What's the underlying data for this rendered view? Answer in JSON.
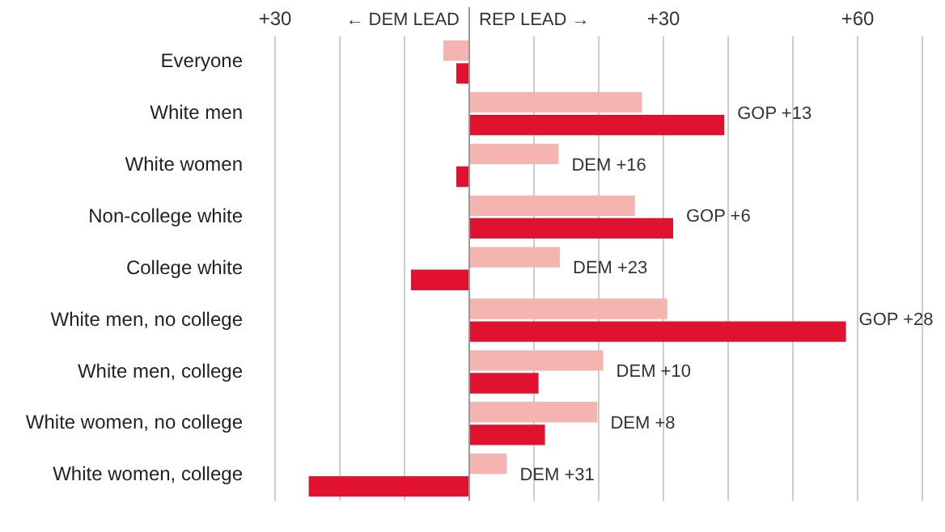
{
  "chart_data": {
    "type": "bar",
    "orientation": "horizontal",
    "categories": [
      "Everyone",
      "White men",
      "White women",
      "Non-college white",
      "College white",
      "White men, no college",
      "White men, college",
      "White women, no college",
      "White women, college"
    ],
    "series": [
      {
        "color": "#f4b4b0",
        "values": [
          -4,
          26.7,
          13.8,
          25.6,
          14,
          30.6,
          20.7,
          19.8,
          5.8
        ]
      },
      {
        "color": "#e0122f",
        "values": [
          -2,
          39.4,
          -2,
          31.5,
          -9,
          58.2,
          10.7,
          11.7,
          -24.8
        ]
      }
    ],
    "xlim": [
      -30,
      70
    ],
    "xticks": [
      {
        "value": -30,
        "label": "+30"
      },
      {
        "value": -20,
        "label": null
      },
      {
        "value": -10,
        "label": null
      },
      {
        "value": 0,
        "label": null
      },
      {
        "value": 10,
        "label": null
      },
      {
        "value": 20,
        "label": null
      },
      {
        "value": 30,
        "label": "+30"
      },
      {
        "value": 40,
        "label": null
      },
      {
        "value": 50,
        "label": null
      },
      {
        "value": 60,
        "label": "+60"
      },
      {
        "value": 70,
        "label": null
      }
    ],
    "grid": "x",
    "ref_lines": [
      {
        "axis": "x",
        "value": 0,
        "color": "#999999"
      }
    ],
    "annotations": [
      "← DEM LEAD",
      "REP LEAD →",
      "GOP +13",
      "DEM +16",
      "GOP +6",
      "DEM +23",
      "GOP +28",
      "DEM +10",
      "DEM +8",
      "DEM +31"
    ]
  }
}
